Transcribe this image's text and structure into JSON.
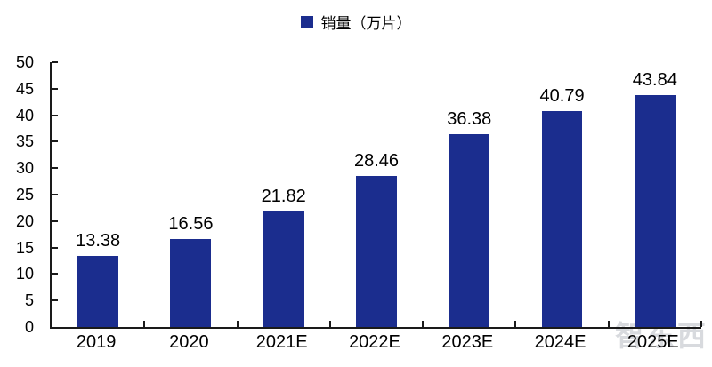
{
  "chart_data": {
    "type": "bar",
    "title": "",
    "legend": "销量（万片）",
    "legend_position": "top-center",
    "categories": [
      "2019",
      "2020",
      "2021E",
      "2022E",
      "2023E",
      "2024E",
      "2025E"
    ],
    "values": [
      13.38,
      16.56,
      21.82,
      28.46,
      36.38,
      40.79,
      43.84
    ],
    "value_labels": [
      "13.38",
      "16.56",
      "21.82",
      "28.46",
      "36.38",
      "40.79",
      "43.84"
    ],
    "xlabel": "",
    "ylabel": "",
    "ylim": [
      0,
      50
    ],
    "y_ticks": [
      0,
      5,
      10,
      15,
      20,
      25,
      30,
      35,
      40,
      45,
      50
    ],
    "grid": false,
    "bar_color": "#1b2d8e",
    "axis_color": "#1a1a1a",
    "text_color": "#000000"
  },
  "watermark": {
    "text": "智东西"
  }
}
